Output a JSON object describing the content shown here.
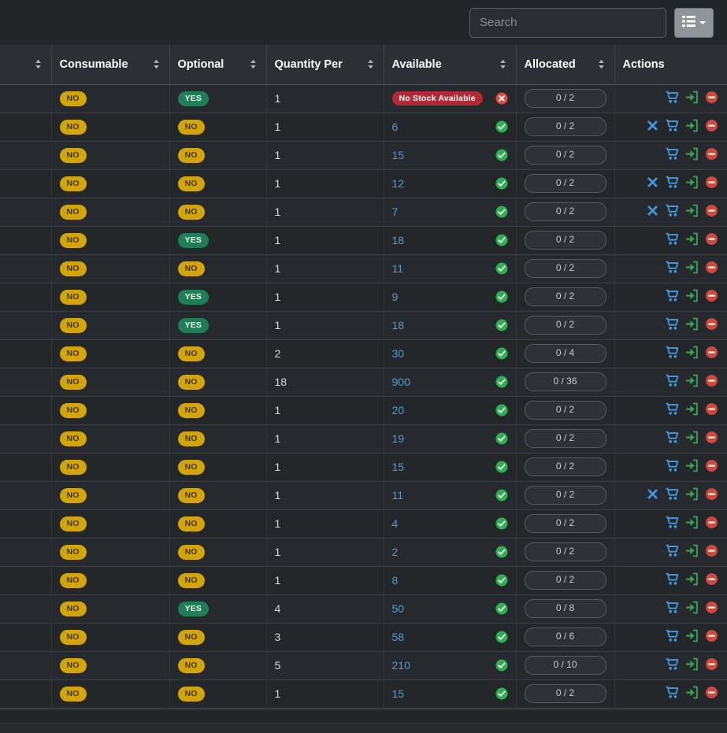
{
  "toolbar": {
    "search_placeholder": "Search",
    "columns_button_icon": "th-list-icon",
    "columns_button_caret": "caret-down-icon"
  },
  "colors": {
    "warning_badge": "#d2a50f",
    "success_badge": "#1f7e55",
    "danger_badge": "#b02a37",
    "link": "#4a9fd8",
    "icon_blue": "#459ade",
    "icon_green": "#3f9e54",
    "icon_red": "#cf4a3d",
    "check_circle": "#2fae52",
    "x_circle": "#df4b38",
    "sort_arrow": "#b7bbbf"
  },
  "table": {
    "columns": [
      {
        "key": "blank",
        "label": "",
        "sortable": true
      },
      {
        "key": "consumable",
        "label": "Consumable",
        "sortable": true
      },
      {
        "key": "optional",
        "label": "Optional",
        "sortable": true
      },
      {
        "key": "quantity_per",
        "label": "Quantity Per",
        "sortable": true
      },
      {
        "key": "available",
        "label": "Available",
        "sortable": true
      },
      {
        "key": "allocated",
        "label": "Allocated",
        "sortable": true
      },
      {
        "key": "actions",
        "label": "Actions",
        "sortable": false
      }
    ],
    "no_stock_label": "No Stock Available",
    "rows": [
      {
        "consumable": "NO",
        "optional": "YES",
        "quantity_per": "1",
        "available": null,
        "available_status": "no-stock",
        "allocated": "0 / 2",
        "actions": [
          "checkout",
          "checkin",
          "remove"
        ]
      },
      {
        "consumable": "NO",
        "optional": "NO",
        "quantity_per": "1",
        "available": "6",
        "available_status": "ok",
        "allocated": "0 / 2",
        "actions": [
          "maintenance",
          "checkout",
          "checkin",
          "remove"
        ]
      },
      {
        "consumable": "NO",
        "optional": "NO",
        "quantity_per": "1",
        "available": "15",
        "available_status": "ok",
        "allocated": "0 / 2",
        "actions": [
          "checkout",
          "checkin",
          "remove"
        ]
      },
      {
        "consumable": "NO",
        "optional": "NO",
        "quantity_per": "1",
        "available": "12",
        "available_status": "ok",
        "allocated": "0 / 2",
        "actions": [
          "maintenance",
          "checkout",
          "checkin",
          "remove"
        ]
      },
      {
        "consumable": "NO",
        "optional": "NO",
        "quantity_per": "1",
        "available": "7",
        "available_status": "ok",
        "allocated": "0 / 2",
        "actions": [
          "maintenance",
          "checkout",
          "checkin",
          "remove"
        ]
      },
      {
        "consumable": "NO",
        "optional": "YES",
        "quantity_per": "1",
        "available": "18",
        "available_status": "ok",
        "allocated": "0 / 2",
        "actions": [
          "checkout",
          "checkin",
          "remove"
        ]
      },
      {
        "consumable": "NO",
        "optional": "NO",
        "quantity_per": "1",
        "available": "11",
        "available_status": "ok",
        "allocated": "0 / 2",
        "actions": [
          "checkout",
          "checkin",
          "remove"
        ]
      },
      {
        "consumable": "NO",
        "optional": "YES",
        "quantity_per": "1",
        "available": "9",
        "available_status": "ok",
        "allocated": "0 / 2",
        "actions": [
          "checkout",
          "checkin",
          "remove"
        ]
      },
      {
        "consumable": "NO",
        "optional": "YES",
        "quantity_per": "1",
        "available": "18",
        "available_status": "ok",
        "allocated": "0 / 2",
        "actions": [
          "checkout",
          "checkin",
          "remove"
        ]
      },
      {
        "consumable": "NO",
        "optional": "NO",
        "quantity_per": "2",
        "available": "30",
        "available_status": "ok",
        "allocated": "0 / 4",
        "actions": [
          "checkout",
          "checkin",
          "remove"
        ]
      },
      {
        "consumable": "NO",
        "optional": "NO",
        "quantity_per": "18",
        "available": "900",
        "available_status": "ok",
        "allocated": "0 / 36",
        "actions": [
          "checkout",
          "checkin",
          "remove"
        ]
      },
      {
        "consumable": "NO",
        "optional": "NO",
        "quantity_per": "1",
        "available": "20",
        "available_status": "ok",
        "allocated": "0 / 2",
        "actions": [
          "checkout",
          "checkin",
          "remove"
        ]
      },
      {
        "consumable": "NO",
        "optional": "NO",
        "quantity_per": "1",
        "available": "19",
        "available_status": "ok",
        "allocated": "0 / 2",
        "actions": [
          "checkout",
          "checkin",
          "remove"
        ]
      },
      {
        "consumable": "NO",
        "optional": "NO",
        "quantity_per": "1",
        "available": "15",
        "available_status": "ok",
        "allocated": "0 / 2",
        "actions": [
          "checkout",
          "checkin",
          "remove"
        ]
      },
      {
        "consumable": "NO",
        "optional": "NO",
        "quantity_per": "1",
        "available": "11",
        "available_status": "ok",
        "allocated": "0 / 2",
        "actions": [
          "maintenance",
          "checkout",
          "checkin",
          "remove"
        ]
      },
      {
        "consumable": "NO",
        "optional": "NO",
        "quantity_per": "1",
        "available": "4",
        "available_status": "ok",
        "allocated": "0 / 2",
        "actions": [
          "checkout",
          "checkin",
          "remove"
        ]
      },
      {
        "consumable": "NO",
        "optional": "NO",
        "quantity_per": "1",
        "available": "2",
        "available_status": "ok",
        "allocated": "0 / 2",
        "actions": [
          "checkout",
          "checkin",
          "remove"
        ]
      },
      {
        "consumable": "NO",
        "optional": "NO",
        "quantity_per": "1",
        "available": "8",
        "available_status": "ok",
        "allocated": "0 / 2",
        "actions": [
          "checkout",
          "checkin",
          "remove"
        ]
      },
      {
        "consumable": "NO",
        "optional": "YES",
        "quantity_per": "4",
        "available": "50",
        "available_status": "ok",
        "allocated": "0 / 8",
        "actions": [
          "checkout",
          "checkin",
          "remove"
        ]
      },
      {
        "consumable": "NO",
        "optional": "NO",
        "quantity_per": "3",
        "available": "58",
        "available_status": "ok",
        "allocated": "0 / 6",
        "actions": [
          "checkout",
          "checkin",
          "remove"
        ]
      },
      {
        "consumable": "NO",
        "optional": "NO",
        "quantity_per": "5",
        "available": "210",
        "available_status": "ok",
        "allocated": "0 / 10",
        "actions": [
          "checkout",
          "checkin",
          "remove"
        ]
      },
      {
        "consumable": "NO",
        "optional": "NO",
        "quantity_per": "1",
        "available": "15",
        "available_status": "ok",
        "allocated": "0 / 2",
        "actions": [
          "checkout",
          "checkin",
          "remove"
        ]
      }
    ]
  }
}
